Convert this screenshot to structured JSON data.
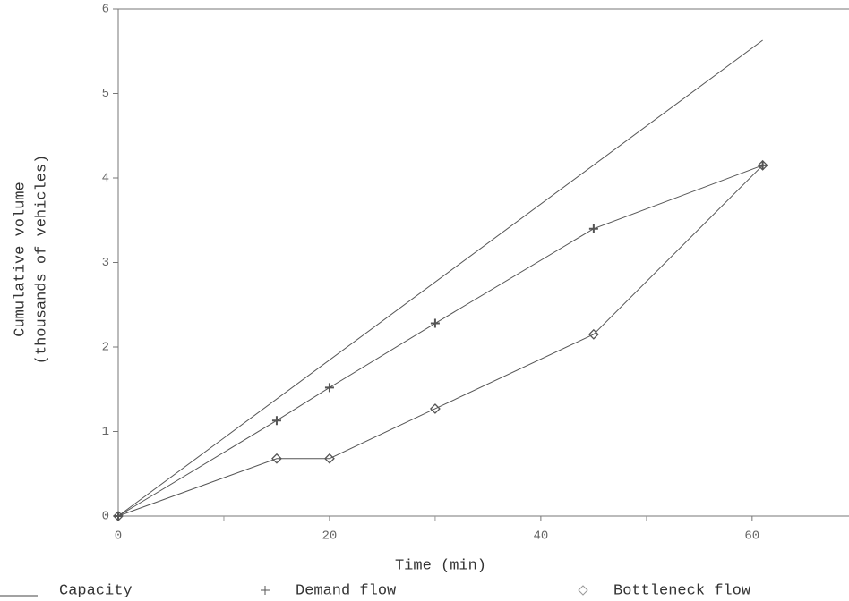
{
  "chart_data": {
    "type": "line",
    "xlabel": "Time (min)",
    "ylabel": [
      "Cumulative volume",
      "(thousands of vehicles)"
    ],
    "xlim": [
      0,
      69
    ],
    "ylim": [
      0,
      6
    ],
    "xticks": [
      0,
      20,
      40,
      60
    ],
    "minor_xticks": [
      10,
      30,
      50
    ],
    "yticks": [
      0,
      1,
      2,
      3,
      4,
      5,
      6
    ],
    "series": [
      {
        "name": "Capacity",
        "color": "#555555",
        "marker": "none",
        "x": [
          0,
          61
        ],
        "values": [
          0,
          5.63
        ]
      },
      {
        "name": "Demand flow",
        "color": "#555555",
        "marker": "plus",
        "x": [
          0,
          15,
          20,
          30,
          45,
          61
        ],
        "values": [
          0,
          1.13,
          1.52,
          2.28,
          3.4,
          4.15
        ]
      },
      {
        "name": "Bottleneck flow",
        "color": "#555555",
        "marker": "diamond",
        "x": [
          0,
          15,
          20,
          30,
          45,
          61
        ],
        "values": [
          0,
          0.68,
          0.68,
          1.27,
          2.15,
          4.15
        ]
      }
    ]
  }
}
